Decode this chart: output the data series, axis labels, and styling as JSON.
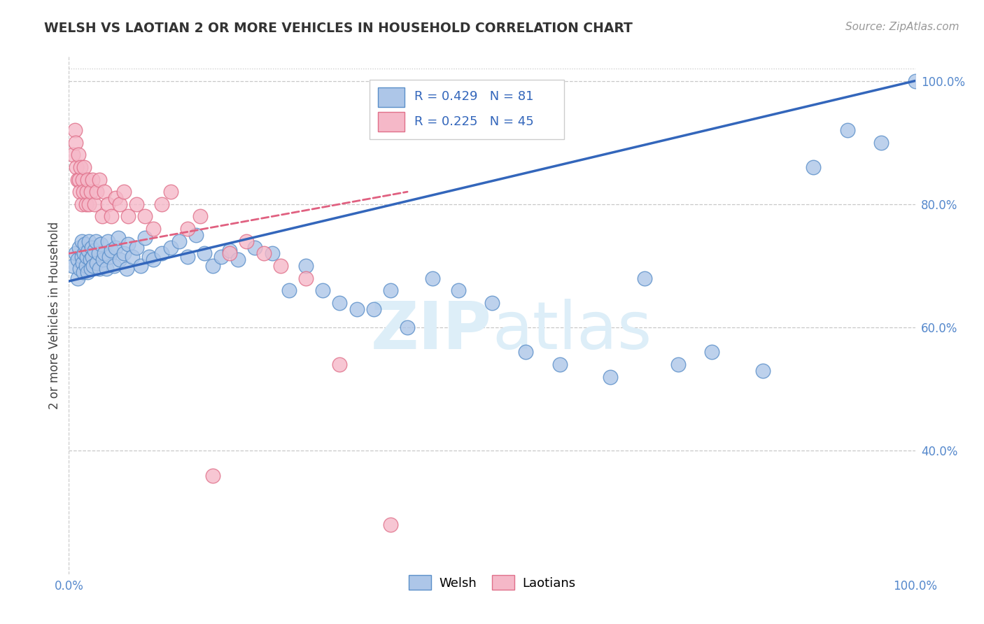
{
  "title": "WELSH VS LAOTIAN 2 OR MORE VEHICLES IN HOUSEHOLD CORRELATION CHART",
  "source_text": "Source: ZipAtlas.com",
  "ylabel": "2 or more Vehicles in Household",
  "xlim": [
    0.0,
    1.0
  ],
  "ylim": [
    0.2,
    1.04
  ],
  "yticks": [
    0.4,
    0.6,
    0.8,
    1.0
  ],
  "ytick_labels": [
    "40.0%",
    "60.0%",
    "80.0%",
    "100.0%"
  ],
  "xticks": [
    0.0,
    1.0
  ],
  "xtick_labels": [
    "0.0%",
    "100.0%"
  ],
  "welsh_color": "#adc6e8",
  "welsh_edge_color": "#5b8fc9",
  "laotian_color": "#f5b8c8",
  "laotian_edge_color": "#e0708a",
  "trend_welsh_color": "#3366bb",
  "trend_laotian_color": "#e06080",
  "background_color": "#ffffff",
  "grid_color": "#c8c8c8",
  "watermark_color": "#ddeef8",
  "welsh_R": 0.429,
  "welsh_N": 81,
  "laotian_R": 0.225,
  "laotian_N": 45,
  "welsh_x": [
    0.005,
    0.008,
    0.01,
    0.01,
    0.012,
    0.013,
    0.015,
    0.015,
    0.016,
    0.017,
    0.018,
    0.019,
    0.02,
    0.021,
    0.022,
    0.023,
    0.024,
    0.025,
    0.026,
    0.027,
    0.028,
    0.029,
    0.03,
    0.032,
    0.033,
    0.035,
    0.036,
    0.038,
    0.04,
    0.042,
    0.044,
    0.046,
    0.048,
    0.05,
    0.053,
    0.055,
    0.058,
    0.06,
    0.065,
    0.068,
    0.07,
    0.075,
    0.08,
    0.085,
    0.09,
    0.095,
    0.1,
    0.11,
    0.12,
    0.13,
    0.14,
    0.15,
    0.16,
    0.17,
    0.18,
    0.19,
    0.2,
    0.22,
    0.24,
    0.26,
    0.28,
    0.3,
    0.32,
    0.34,
    0.36,
    0.38,
    0.4,
    0.43,
    0.46,
    0.5,
    0.54,
    0.58,
    0.64,
    0.68,
    0.72,
    0.76,
    0.82,
    0.88,
    0.92,
    0.96,
    1.0
  ],
  "welsh_y": [
    0.7,
    0.72,
    0.68,
    0.71,
    0.73,
    0.695,
    0.715,
    0.74,
    0.705,
    0.69,
    0.72,
    0.735,
    0.7,
    0.715,
    0.69,
    0.725,
    0.74,
    0.71,
    0.695,
    0.73,
    0.715,
    0.7,
    0.725,
    0.74,
    0.705,
    0.72,
    0.695,
    0.735,
    0.71,
    0.72,
    0.695,
    0.74,
    0.715,
    0.725,
    0.7,
    0.73,
    0.745,
    0.71,
    0.72,
    0.695,
    0.735,
    0.715,
    0.73,
    0.7,
    0.745,
    0.715,
    0.71,
    0.72,
    0.73,
    0.74,
    0.715,
    0.75,
    0.72,
    0.7,
    0.715,
    0.725,
    0.71,
    0.73,
    0.72,
    0.66,
    0.7,
    0.66,
    0.64,
    0.63,
    0.63,
    0.66,
    0.6,
    0.68,
    0.66,
    0.64,
    0.56,
    0.54,
    0.52,
    0.68,
    0.54,
    0.56,
    0.53,
    0.86,
    0.92,
    0.9,
    1.0
  ],
  "laotian_x": [
    0.005,
    0.007,
    0.008,
    0.009,
    0.01,
    0.011,
    0.012,
    0.013,
    0.014,
    0.015,
    0.016,
    0.017,
    0.018,
    0.02,
    0.021,
    0.022,
    0.024,
    0.026,
    0.028,
    0.03,
    0.033,
    0.036,
    0.039,
    0.042,
    0.046,
    0.05,
    0.055,
    0.06,
    0.065,
    0.07,
    0.08,
    0.09,
    0.1,
    0.11,
    0.12,
    0.14,
    0.155,
    0.17,
    0.19,
    0.21,
    0.23,
    0.25,
    0.28,
    0.32,
    0.38
  ],
  "laotian_y": [
    0.88,
    0.92,
    0.9,
    0.86,
    0.84,
    0.88,
    0.84,
    0.82,
    0.86,
    0.8,
    0.84,
    0.82,
    0.86,
    0.8,
    0.82,
    0.84,
    0.8,
    0.82,
    0.84,
    0.8,
    0.82,
    0.84,
    0.78,
    0.82,
    0.8,
    0.78,
    0.81,
    0.8,
    0.82,
    0.78,
    0.8,
    0.78,
    0.76,
    0.8,
    0.82,
    0.76,
    0.78,
    0.36,
    0.72,
    0.74,
    0.72,
    0.7,
    0.68,
    0.54,
    0.28
  ],
  "welsh_trend": [
    0.0,
    1.0,
    0.675,
    1.0
  ],
  "laotian_trend": [
    0.0,
    0.4,
    0.72,
    0.82
  ]
}
